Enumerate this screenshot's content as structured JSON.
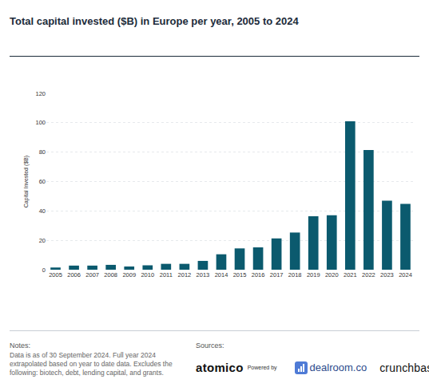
{
  "chart_data": {
    "type": "bar",
    "title": "Total capital invested ($B) in Europe per year, 2005 to 2024",
    "y_label": "Capital Invested ($B)",
    "categories": [
      "2005",
      "2006",
      "2007",
      "2008",
      "2009",
      "2010",
      "2011",
      "2012",
      "2013",
      "2014",
      "2015",
      "2016",
      "2017",
      "2018",
      "2019",
      "2020",
      "2021",
      "2022",
      "2023",
      "2024"
    ],
    "values": [
      1.5,
      2.8,
      2.8,
      3.3,
      2.2,
      3.0,
      4.0,
      4.0,
      6.0,
      10.5,
      14.5,
      15.2,
      21.3,
      25.3,
      36.4,
      37.0,
      101,
      81.4,
      47,
      44.8
    ],
    "color": "#0b5a6e",
    "ylim": [
      0,
      120
    ],
    "yticks": [
      0,
      20,
      40,
      60,
      80,
      100,
      120
    ],
    "grid": true
  },
  "notes": {
    "heading": "Notes:",
    "text": "Data is as of 30 September 2024. Full year 2024 extrapolated based on year to date data. Excludes the following: biotech, debt, lending capital, and grants."
  },
  "sources": {
    "heading": "Sources:",
    "logos": [
      "atomico",
      "Powered by",
      "dealroom.co",
      "crunchbase"
    ]
  }
}
